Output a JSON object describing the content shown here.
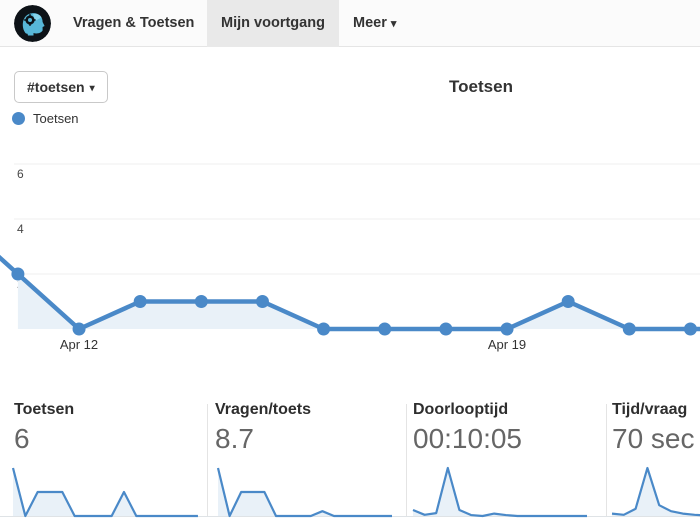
{
  "nav": {
    "logo_icon": "brain-gear-logo",
    "items": [
      {
        "label": "Vragen & Toetsen",
        "active": false
      },
      {
        "label": "Mijn voortgang",
        "active": true
      },
      {
        "label": "Meer",
        "active": false
      }
    ],
    "meer_caret": "▾"
  },
  "toolbar": {
    "filter_label": "#toetsen",
    "filter_caret": "▾"
  },
  "chart_header": {
    "title": "Toetsen",
    "legend_label": "Toetsen"
  },
  "chart_data": {
    "type": "area",
    "title": "Toetsen",
    "legend": [
      "Toetsen"
    ],
    "series_name": "Toetsen",
    "values": [
      2,
      0,
      1,
      1,
      1,
      0,
      0,
      0,
      0,
      1,
      0,
      0
    ],
    "ticks": [
      {
        "index": 1,
        "label": "Apr 12"
      },
      {
        "index": 8,
        "label": "Apr 19"
      }
    ],
    "yticks": [
      "6",
      "4",
      "2"
    ],
    "ylim": [
      0,
      7
    ],
    "grid": true,
    "edge_left_value": 4,
    "edge_right_value": 0
  },
  "cards": [
    {
      "title": "Toetsen",
      "value": "6",
      "spark": [
        2,
        0,
        1,
        1,
        1,
        0,
        0,
        0,
        0,
        1,
        0,
        0,
        0,
        0,
        0,
        0
      ]
    },
    {
      "title": "Vragen/toets",
      "value": "8.7",
      "spark": [
        2,
        0,
        1,
        1,
        1,
        0,
        0,
        0,
        0,
        0.2,
        0,
        0,
        0,
        0,
        0,
        0
      ]
    },
    {
      "title": "Doorlooptijd",
      "value": "00:10:05",
      "spark": [
        0.25,
        0.05,
        0.12,
        2,
        0.25,
        0.04,
        0,
        0.1,
        0.04,
        0,
        0,
        0,
        0,
        0,
        0,
        0
      ]
    },
    {
      "title": "Tijd/vraag",
      "value": "70 sec",
      "spark": [
        0.1,
        0.05,
        0.3,
        2,
        0.45,
        0.2,
        0.1,
        0.05,
        0.02,
        0,
        0,
        0,
        0,
        0,
        0,
        0
      ]
    }
  ],
  "colors": {
    "accent_blue": "#4a89c8",
    "area_fill": "#e9f1f8",
    "grid_line": "#efefef",
    "spark_baseline": "#dfe3e6",
    "active_tab_bg": "#e9e9e9"
  }
}
